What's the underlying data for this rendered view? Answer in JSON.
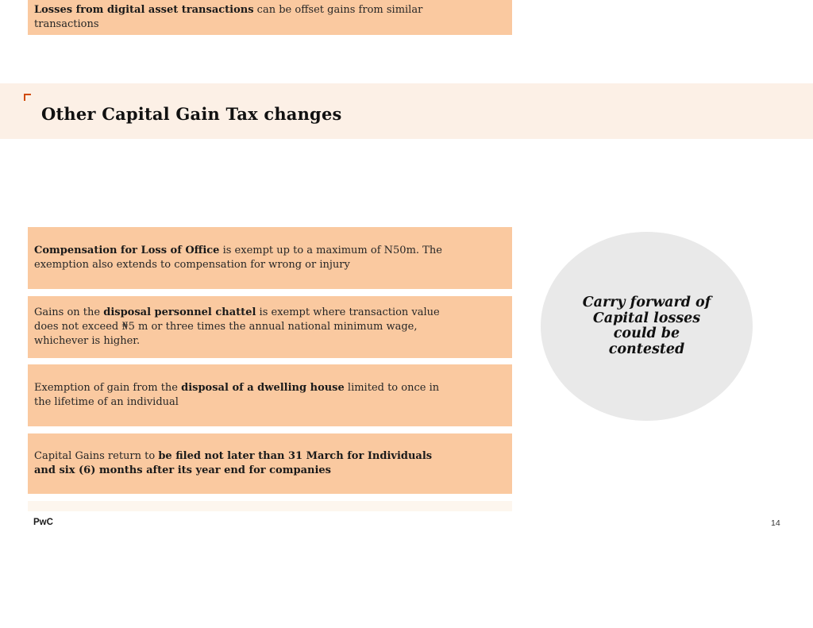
{
  "slide": {
    "title": "Other Capital Gain Tax changes",
    "footer_logo": "PwC",
    "page_number": "14"
  },
  "boxes": [
    {
      "segments": [
        {
          "text": "Compensation for Loss of Office",
          "bold": true
        },
        {
          "text": " is exempt up to a maximum of N50m. The exemption also extends to compensation for wrong or injury",
          "bold": false
        }
      ]
    },
    {
      "segments": [
        {
          "text": "Gains on the ",
          "bold": false
        },
        {
          "text": "disposal personnel chattel",
          "bold": true
        },
        {
          "text": " is exempt where transaction value does not exceed ₦5 m or three times the annual national minimum wage, whichever is higher.",
          "bold": false
        }
      ]
    },
    {
      "segments": [
        {
          "text": "Exemption of gain from the ",
          "bold": false
        },
        {
          "text": "disposal of a dwelling house",
          "bold": true
        },
        {
          "text": " limited to once in the lifetime of an individual",
          "bold": false
        }
      ]
    },
    {
      "segments": [
        {
          "text": "Capital Gains return to ",
          "bold": false
        },
        {
          "text": "be filed not later than 31 March for Individuals and six (6) months after its year end for companies",
          "bold": true
        }
      ]
    },
    {
      "segments": [
        {
          "text": "Losses from digital asset transactions",
          "bold": true
        },
        {
          "text": " can be offset gains from similar transactions",
          "bold": false
        }
      ]
    }
  ],
  "callout": {
    "lines": [
      "Carry forward of",
      "Capital losses",
      "could be",
      "contested"
    ]
  },
  "colors": {
    "header_band": "#fcf0e6",
    "box_fill": "#fac9a0",
    "circle_fill": "#e9e9e9",
    "accent_orange": "#d04a02",
    "text": "#1f1f1f"
  }
}
